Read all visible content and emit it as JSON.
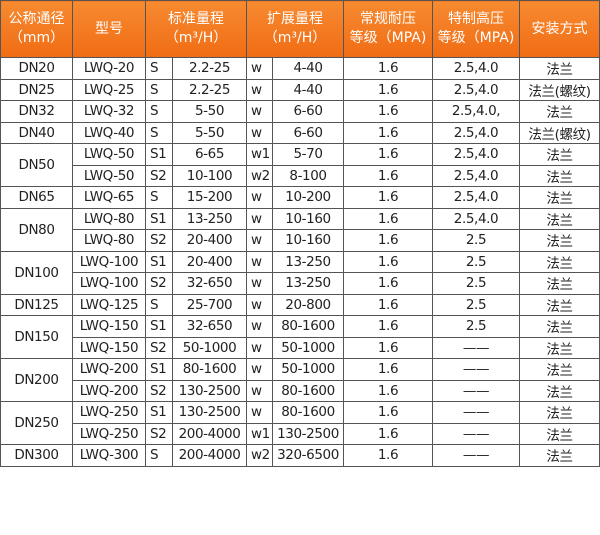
{
  "header": {
    "dn": [
      "公称通径",
      "（mm）"
    ],
    "model": "型号",
    "std_range": [
      "标准量程",
      "（m³/H）"
    ],
    "ext_range": [
      "扩展量程",
      "（m³/H）"
    ],
    "normal_pressure": [
      "常规耐压",
      "等级（MPA)"
    ],
    "high_pressure": [
      "特制高压",
      "等级（MPA)"
    ],
    "install": "安装方式"
  },
  "colors": {
    "header_bg": "#f37a20",
    "header_text": "#ffffff",
    "border": "#555555"
  },
  "groups": [
    {
      "dn": "DN20",
      "rows": [
        [
          "LWQ-20",
          "S",
          "2.2-25",
          "w",
          "4-40",
          "1.6",
          "2.5,4.0",
          "法兰"
        ]
      ]
    },
    {
      "dn": "DN25",
      "rows": [
        [
          "LWQ-25",
          "S",
          "2.2-25",
          "w",
          "4-40",
          "1.6",
          "2.5,4.0",
          "法兰(螺纹)"
        ]
      ]
    },
    {
      "dn": "DN32",
      "rows": [
        [
          "LWQ-32",
          "S",
          "5-50",
          "w",
          "6-60",
          "1.6",
          "2.5,4.0,",
          "法兰"
        ]
      ]
    },
    {
      "dn": "DN40",
      "rows": [
        [
          "LWQ-40",
          "S",
          "5-50",
          "w",
          "6-60",
          "1.6",
          "2.5,4.0",
          "法兰(螺纹)"
        ]
      ]
    },
    {
      "dn": "DN50",
      "rows": [
        [
          "LWQ-50",
          "S1",
          "6-65",
          "w1",
          "5-70",
          "1.6",
          "2.5,4.0",
          "法兰"
        ],
        [
          "LWQ-50",
          "S2",
          "10-100",
          "w2",
          "8-100",
          "1.6",
          "2.5,4.0",
          "法兰"
        ]
      ]
    },
    {
      "dn": "DN65",
      "rows": [
        [
          "LWQ-65",
          "S",
          "15-200",
          "w",
          "10-200",
          "1.6",
          "2.5,4.0",
          "法兰"
        ]
      ]
    },
    {
      "dn": "DN80",
      "rows": [
        [
          "LWQ-80",
          "S1",
          "13-250",
          "w",
          "10-160",
          "1.6",
          "2.5,4.0",
          "法兰"
        ],
        [
          "LWQ-80",
          "S2",
          "20-400",
          "w",
          "10-160",
          "1.6",
          "2.5",
          "法兰"
        ]
      ]
    },
    {
      "dn": "DN100",
      "rows": [
        [
          "LWQ-100",
          "S1",
          "20-400",
          "w",
          "13-250",
          "1.6",
          "2.5",
          "法兰"
        ],
        [
          "LWQ-100",
          "S2",
          "32-650",
          "w",
          "13-250",
          "1.6",
          "2.5",
          "法兰"
        ]
      ]
    },
    {
      "dn": "DN125",
      "rows": [
        [
          "LWQ-125",
          "S",
          "25-700",
          "w",
          "20-800",
          "1.6",
          "2.5",
          "法兰"
        ]
      ]
    },
    {
      "dn": "DN150",
      "rows": [
        [
          "LWQ-150",
          "S1",
          "32-650",
          "w",
          "80-1600",
          "1.6",
          "2.5",
          "法兰"
        ],
        [
          "LWQ-150",
          "S2",
          "50-1000",
          "w",
          "50-1000",
          "1.6",
          "——",
          "法兰"
        ]
      ]
    },
    {
      "dn": "DN200",
      "rows": [
        [
          "LWQ-200",
          "S1",
          "80-1600",
          "w",
          "50-1000",
          "1.6",
          "——",
          "法兰"
        ],
        [
          "LWQ-200",
          "S2",
          "130-2500",
          "w",
          "80-1600",
          "1.6",
          "——",
          "法兰"
        ]
      ]
    },
    {
      "dn": "DN250",
      "rows": [
        [
          "LWQ-250",
          "S1",
          "130-2500",
          "w",
          "80-1600",
          "1.6",
          "——",
          "法兰"
        ],
        [
          "LWQ-250",
          "S2",
          "200-4000",
          "w1",
          "130-2500",
          "1.6",
          "——",
          "法兰"
        ]
      ]
    },
    {
      "dn": "DN300",
      "rows": [
        [
          "LWQ-300",
          "S",
          "200-4000",
          "w2",
          "320-6500",
          "1.6",
          "——",
          "法兰"
        ]
      ]
    }
  ]
}
